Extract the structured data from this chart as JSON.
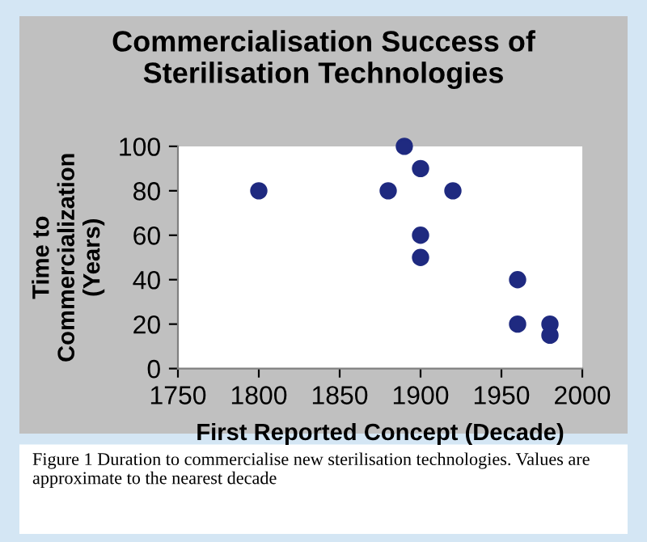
{
  "chart_data": {
    "type": "scatter",
    "title": "Commercialisation Success of\nSterilisation Technologies",
    "xlabel": "First Reported Concept (Decade)",
    "ylabel": "Time to\nCommercialization\n(Years)",
    "x": [
      1800,
      1880,
      1890,
      1900,
      1900,
      1900,
      1920,
      1960,
      1960,
      1980,
      1980
    ],
    "series": [
      {
        "color": "#1f2a80",
        "values": [
          80,
          80,
          100,
          90,
          60,
          50,
          80,
          40,
          20,
          20,
          15
        ]
      }
    ],
    "xlim": [
      1750,
      2000
    ],
    "xticks": [
      1750,
      1800,
      1850,
      1900,
      1950,
      2000
    ],
    "ylim": [
      0,
      100
    ],
    "yticks": [
      0,
      20,
      40,
      60,
      80,
      100
    ],
    "grid": false,
    "legend": false,
    "marker": "circle",
    "annotations": [
      "Figure 1 Duration to commercialise new sterilisation technologies. Values are approximate to the nearest decade"
    ]
  }
}
